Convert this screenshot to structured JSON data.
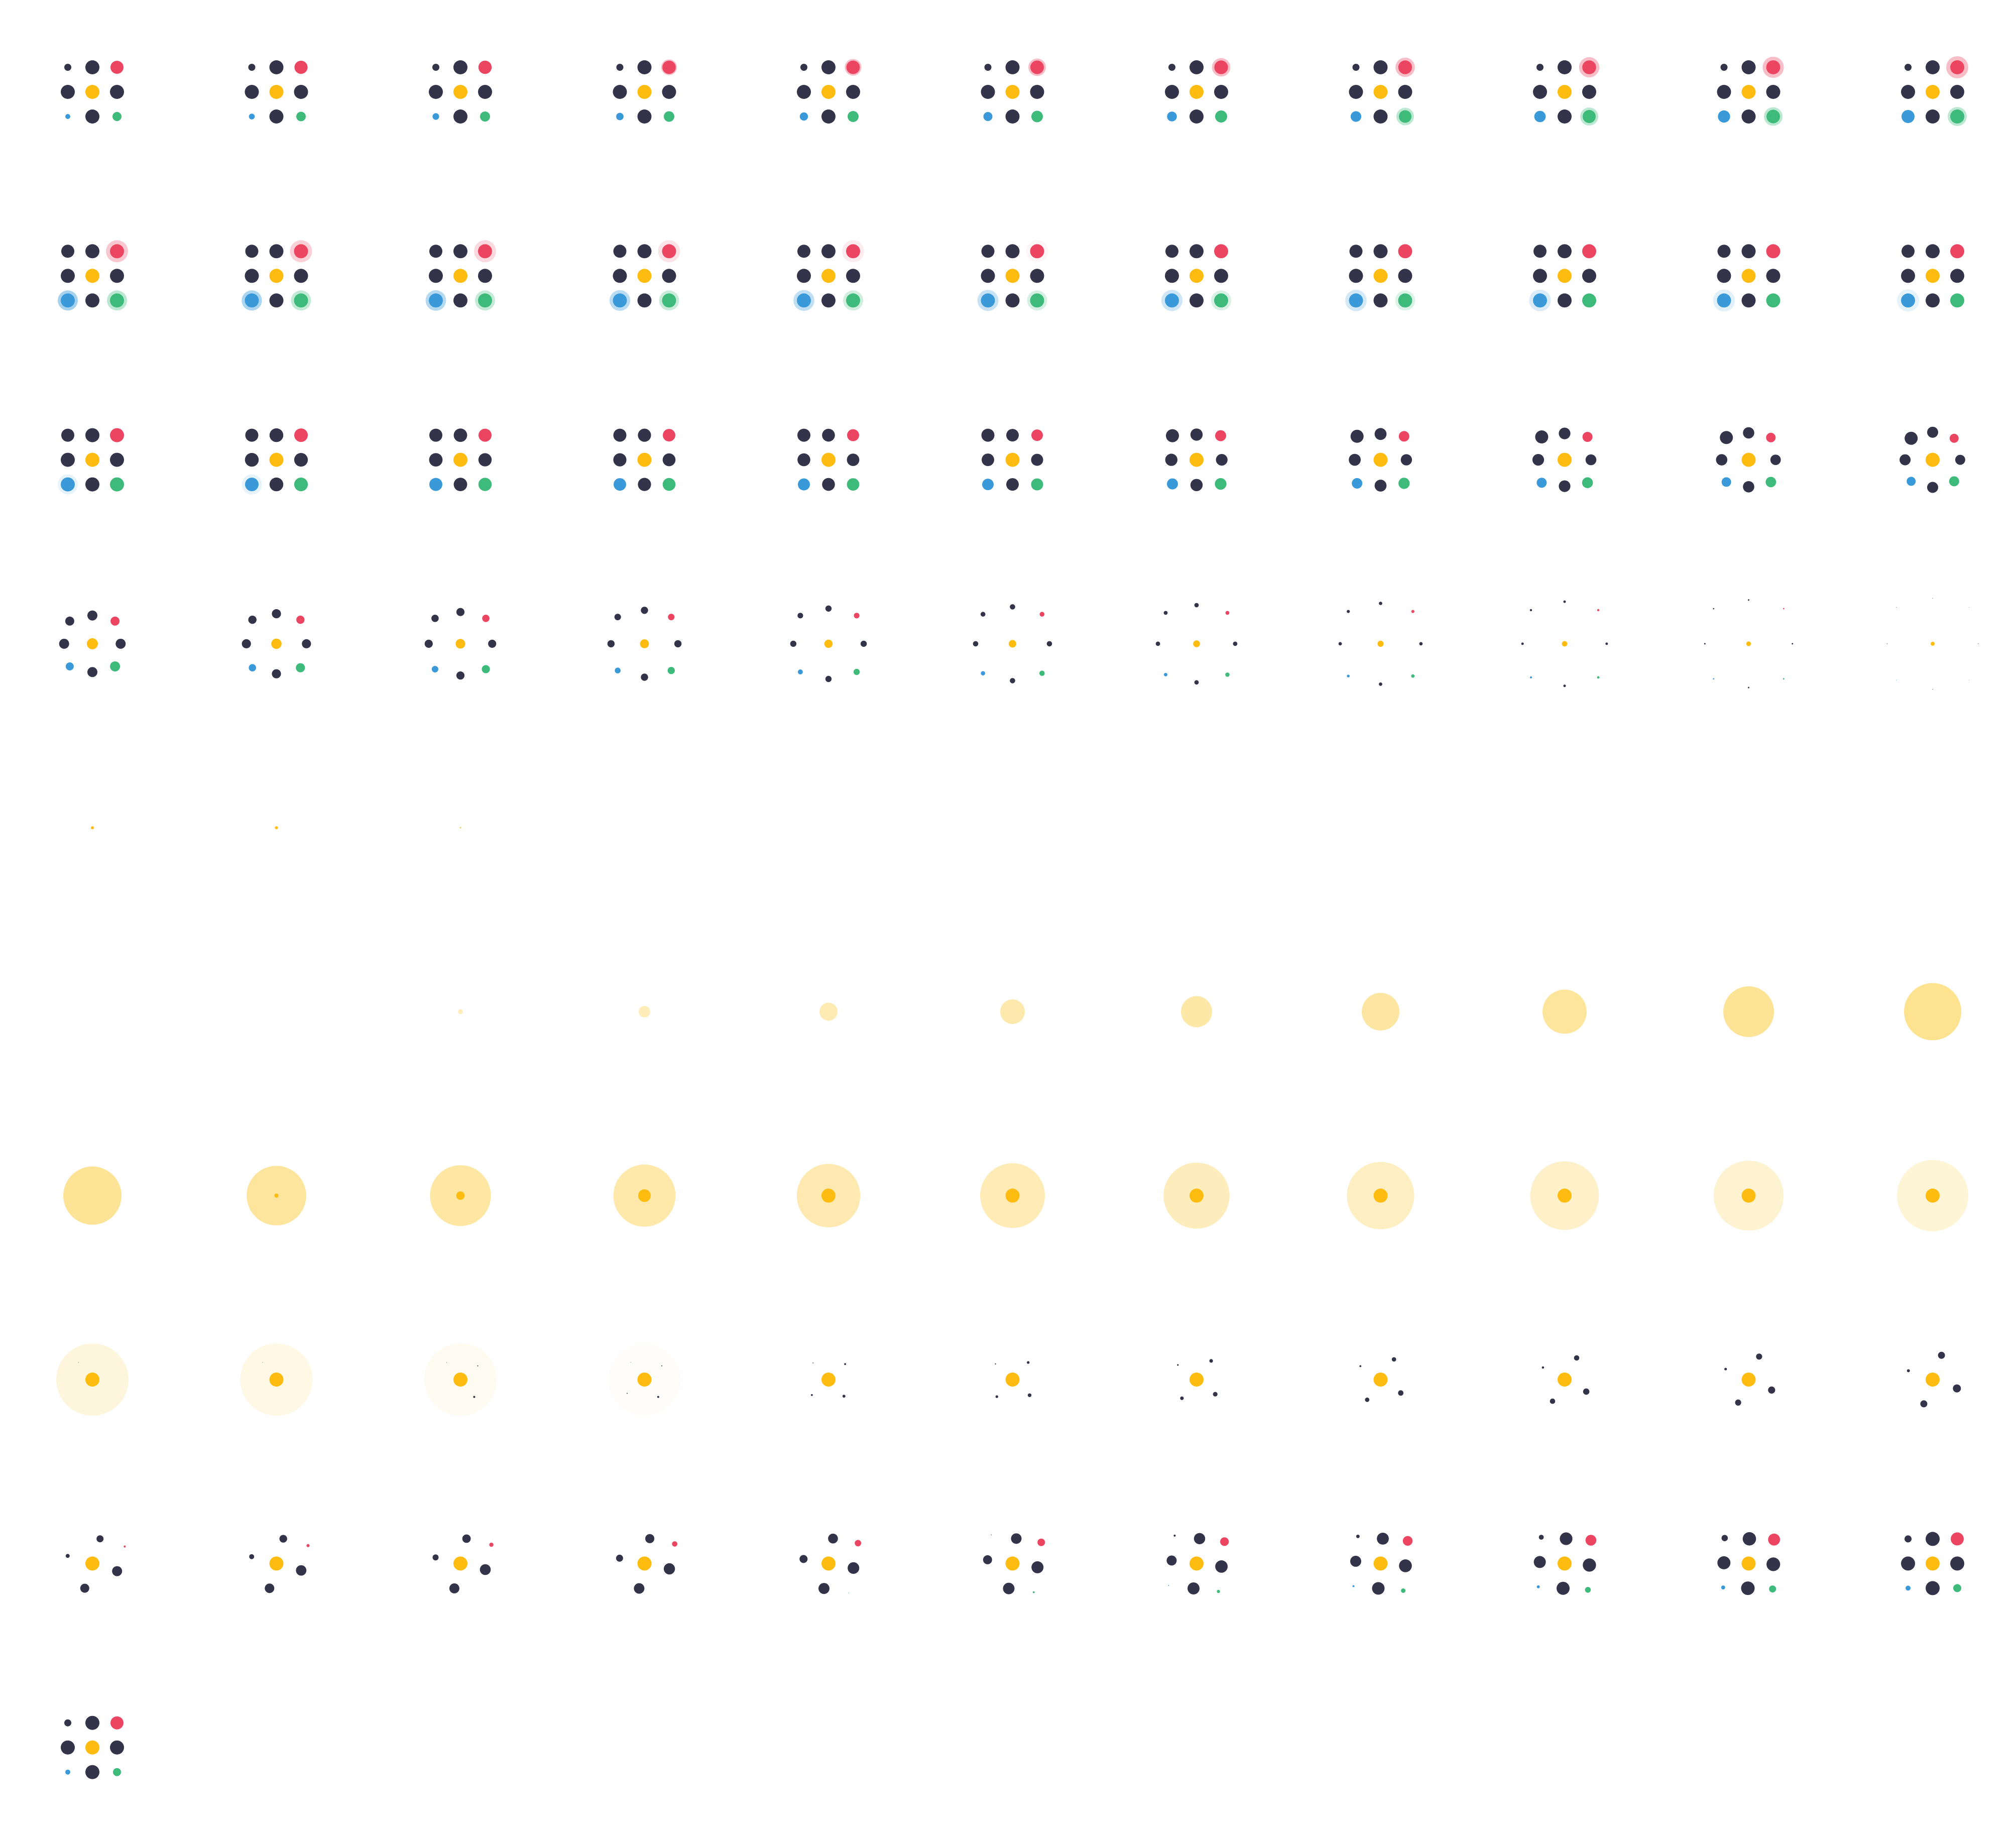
{
  "sheet": {
    "title": "",
    "columns": 11,
    "rows": 10,
    "frame_count": 100
  },
  "palette": {
    "dark": "#33334a",
    "yellow": "#fdbc0f",
    "red": "#ec4561",
    "blue": "#3a9ad9",
    "green": "#3eba7a",
    "halo_yellow": "#fde08a"
  },
  "frames_description_note": ""
}
